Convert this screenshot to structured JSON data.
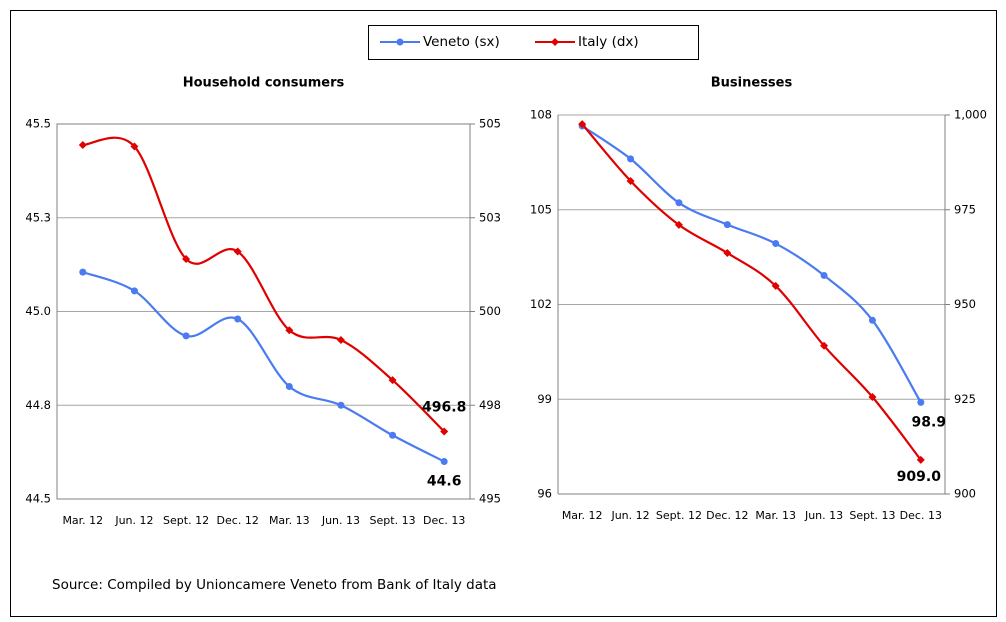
{
  "chart_data": [
    {
      "type": "line",
      "title": "Household consumers",
      "categories": [
        "Mar. 12",
        "Jun. 12",
        "Sept. 12",
        "Dec. 12",
        "Mar. 13",
        "Jun. 13",
        "Sept. 13",
        "Dec. 13"
      ],
      "ylim": [
        44.5,
        45.5
      ],
      "yticks": [
        44.5,
        {
          "value": 44.75,
          "label": "44.8"
        },
        {
          "value": 45,
          "label": "45.0"
        },
        {
          "value": 45.25,
          "label": "45.3"
        },
        45.5
      ],
      "y2lim": [
        495,
        505
      ],
      "y2ticks": [
        495,
        {
          "value": 497.5,
          "label": "498"
        },
        500,
        {
          "value": 502.5,
          "label": "503"
        },
        505
      ],
      "grid": true,
      "series": [
        {
          "name": "Veneto (sx)",
          "color": "#4a7bf0",
          "values": [
            45.105,
            45.055,
            44.935,
            44.98,
            44.8,
            44.75,
            44.67,
            44.6
          ],
          "value_labels": [
            null,
            null,
            null,
            null,
            null,
            null,
            null,
            "44.6"
          ]
        },
        {
          "name": "Italy (dx)",
          "color": "#e00000",
          "axis": "y2",
          "values": [
            504.44,
            504.4,
            501.4,
            501.6,
            499.5,
            499.24,
            498.17,
            496.8
          ],
          "value_labels": [
            null,
            null,
            null,
            null,
            null,
            null,
            null,
            "496.8"
          ]
        }
      ]
    },
    {
      "type": "line",
      "title": "Businesses",
      "categories": [
        "Mar. 12",
        "Jun. 12",
        "Sept. 12",
        "Dec. 12",
        "Mar. 13",
        "Jun. 13",
        "Sept. 13",
        "Dec. 13"
      ],
      "ylim": [
        96,
        108
      ],
      "yticks": [
        96,
        99,
        102,
        105,
        108
      ],
      "y2lim": [
        900,
        1000
      ],
      "y2ticks": [
        900,
        925,
        950,
        975,
        {
          "value": 1000,
          "label": "1,000"
        }
      ],
      "grid": true,
      "series": [
        {
          "color": "#4a7bf0",
          "values": [
            107.65,
            106.61,
            105.22,
            104.53,
            103.93,
            102.92,
            101.5,
            98.9
          ],
          "value_labels": [
            null,
            null,
            null,
            null,
            null,
            null,
            null,
            "98.9"
          ]
        },
        {
          "color": "#e00000",
          "axis": "y2",
          "values": [
            997.6,
            982.6,
            971.0,
            963.6,
            954.9,
            939.1,
            925.6,
            909
          ],
          "value_labels": [
            null,
            null,
            null,
            null,
            null,
            null,
            null,
            "909.0"
          ]
        }
      ]
    }
  ],
  "source": "Source: Compiled by Unioncamere Veneto from Bank of Italy data"
}
